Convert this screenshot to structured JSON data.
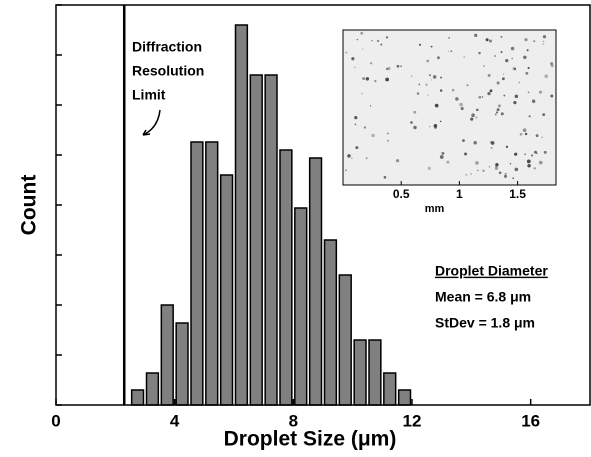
{
  "chart_data": {
    "type": "histogram",
    "xlabel": "Droplet Size (μm)",
    "ylabel": "Count",
    "bins": [
      2.5,
      3,
      3.5,
      4,
      4.5,
      5,
      5.5,
      6,
      6.5,
      7,
      7.5,
      8,
      8.5,
      9,
      9.5,
      10,
      10.5,
      11,
      11.5,
      12
    ],
    "values": [
      0.3,
      0.64,
      2.0,
      1.64,
      5.26,
      5.26,
      4.6,
      7.6,
      6.6,
      6.6,
      5.1,
      3.94,
      4.94,
      3.3,
      2.6,
      1.3,
      1.3,
      0.64,
      0.3
    ],
    "color": "#808080",
    "xlim": [
      0,
      18
    ],
    "xticks": [
      0,
      4,
      8,
      12,
      16
    ],
    "ylim": [
      0,
      8
    ],
    "yticks": [
      0,
      1,
      2,
      3,
      4,
      5,
      6,
      7,
      8
    ],
    "limit_line": {
      "x": 2.3,
      "label": [
        "Diffraction",
        "Resolution",
        "Limit"
      ]
    },
    "stats": {
      "heading": "Droplet Diameter",
      "lines": [
        "Mean = 6.8 μm",
        "StDev = 1.8 μm"
      ]
    },
    "inset": {
      "xlim": [
        0,
        1.83
      ],
      "xticks": [
        0.5,
        1,
        1.5
      ],
      "xlabel": "mm"
    }
  }
}
